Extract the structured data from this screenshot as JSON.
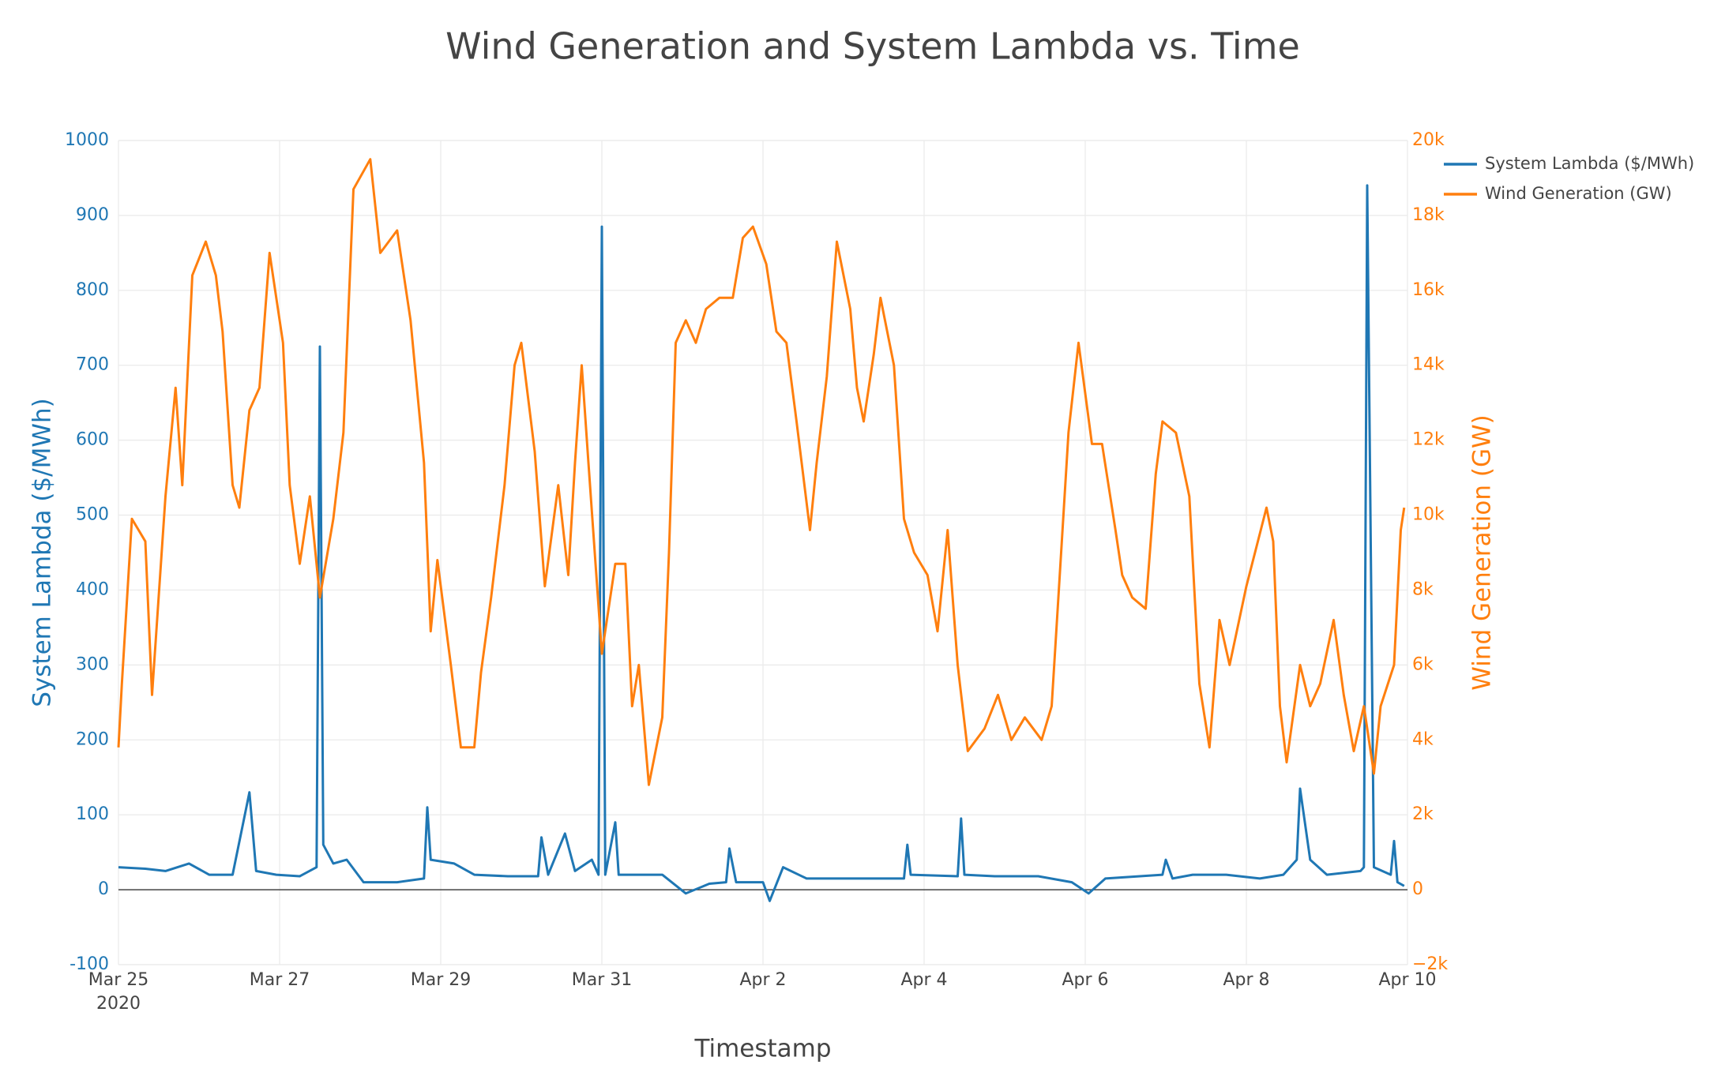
{
  "chart_data": {
    "type": "line",
    "title": "Wind Generation and System Lambda vs. Time",
    "x_label": "Timestamp",
    "y_label": "System Lambda ($/MWh)",
    "y2_label": "Wind Generation (GW)",
    "xlim": [
      "2020-03-25T00:00",
      "2020-04-10T00:00"
    ],
    "xticks": [
      {
        "value": "2020-03-25T00:00",
        "label": "Mar 25"
      },
      {
        "value": "2020-03-27T00:00",
        "label": "Mar 27"
      },
      {
        "value": "2020-03-29T00:00",
        "label": "Mar 29"
      },
      {
        "value": "2020-03-31T00:00",
        "label": "Mar 31"
      },
      {
        "value": "2020-04-02T00:00",
        "label": "Apr 2"
      },
      {
        "value": "2020-04-04T00:00",
        "label": "Apr 4"
      },
      {
        "value": "2020-04-06T00:00",
        "label": "Apr 6"
      },
      {
        "value": "2020-04-08T00:00",
        "label": "Apr 8"
      },
      {
        "value": "2020-04-10T00:00",
        "label": "Apr 10"
      }
    ],
    "x_year": "2020",
    "ylim": [
      -100,
      1000
    ],
    "yticks": [
      -100,
      0,
      100,
      200,
      300,
      400,
      500,
      600,
      700,
      800,
      900,
      1000
    ],
    "y2lim": [
      -2000,
      20000
    ],
    "y2ticks": [
      {
        "value": -2000,
        "label": "−2k"
      },
      0,
      {
        "value": 2000,
        "label": "2k"
      },
      {
        "value": 4000,
        "label": "4k"
      },
      {
        "value": 6000,
        "label": "6k"
      },
      {
        "value": 8000,
        "label": "8k"
      },
      {
        "value": 10000,
        "label": "10k"
      },
      {
        "value": 12000,
        "label": "12k"
      },
      {
        "value": 14000,
        "label": "14k"
      },
      {
        "value": 16000,
        "label": "16k"
      },
      {
        "value": 18000,
        "label": "18k"
      },
      {
        "value": 20000,
        "label": "20k"
      }
    ],
    "grid": true,
    "legend": "top-right",
    "series": [
      {
        "name": "System Lambda ($/MWh)",
        "color": "#1f77b4",
        "x": [
          "2020-03-25T00:00",
          "2020-03-25T08:00",
          "2020-03-25T14:00",
          "2020-03-25T21:00",
          "2020-03-26T03:00",
          "2020-03-26T10:00",
          "2020-03-26T15:00",
          "2020-03-26T17:00",
          "2020-03-26T23:00",
          "2020-03-27T06:00",
          "2020-03-27T11:00",
          "2020-03-27T12:00",
          "2020-03-27T13:00",
          "2020-03-27T16:00",
          "2020-03-27T20:00",
          "2020-03-28T01:00",
          "2020-03-28T11:00",
          "2020-03-28T19:00",
          "2020-03-28T20:00",
          "2020-03-28T21:00",
          "2020-03-29T04:00",
          "2020-03-29T10:00",
          "2020-03-29T20:00",
          "2020-03-30T05:00",
          "2020-03-30T06:00",
          "2020-03-30T08:00",
          "2020-03-30T13:00",
          "2020-03-30T16:00",
          "2020-03-30T21:00",
          "2020-03-30T23:00",
          "2020-03-31T00:00",
          "2020-03-31T01:00",
          "2020-03-31T04:00",
          "2020-03-31T05:00",
          "2020-03-31T12:00",
          "2020-03-31T18:00",
          "2020-04-01T01:00",
          "2020-04-01T08:00",
          "2020-04-01T13:00",
          "2020-04-01T14:00",
          "2020-04-01T16:00",
          "2020-04-02T00:00",
          "2020-04-02T02:00",
          "2020-04-02T06:00",
          "2020-04-02T13:00",
          "2020-04-02T23:00",
          "2020-04-03T09:00",
          "2020-04-03T18:00",
          "2020-04-03T19:00",
          "2020-04-03T20:00",
          "2020-04-04T10:00",
          "2020-04-04T11:00",
          "2020-04-04T12:00",
          "2020-04-04T21:00",
          "2020-04-05T10:00",
          "2020-04-05T20:00",
          "2020-04-06T01:00",
          "2020-04-06T06:00",
          "2020-04-06T23:00",
          "2020-04-07T00:00",
          "2020-04-07T02:00",
          "2020-04-07T08:00",
          "2020-04-07T18:00",
          "2020-04-08T04:00",
          "2020-04-08T11:00",
          "2020-04-08T15:00",
          "2020-04-08T16:00",
          "2020-04-08T19:00",
          "2020-04-09T00:00",
          "2020-04-09T10:00",
          "2020-04-09T11:00",
          "2020-04-09T12:00",
          "2020-04-09T14:00",
          "2020-04-09T19:00",
          "2020-04-09T20:00",
          "2020-04-09T21:00",
          "2020-04-09T23:00"
        ],
        "values": [
          30,
          28,
          25,
          35,
          20,
          20,
          130,
          25,
          20,
          18,
          30,
          725,
          60,
          35,
          40,
          10,
          10,
          15,
          110,
          40,
          35,
          20,
          18,
          18,
          70,
          20,
          75,
          25,
          40,
          20,
          885,
          20,
          90,
          20,
          20,
          20,
          -5,
          8,
          10,
          55,
          10,
          10,
          -15,
          30,
          15,
          15,
          15,
          15,
          60,
          20,
          18,
          95,
          20,
          18,
          18,
          10,
          -5,
          15,
          20,
          40,
          15,
          20,
          20,
          15,
          20,
          40,
          135,
          40,
          20,
          25,
          30,
          940,
          30,
          20,
          65,
          10,
          5
        ]
      },
      {
        "name": "Wind Generation (GW)",
        "color": "#ff7f0e",
        "axis": "y2",
        "x": [
          "2020-03-25T00:00",
          "2020-03-25T01:00",
          "2020-03-25T04:00",
          "2020-03-25T06:00",
          "2020-03-25T08:00",
          "2020-03-25T10:00",
          "2020-03-25T14:00",
          "2020-03-25T17:00",
          "2020-03-25T19:00",
          "2020-03-25T22:00",
          "2020-03-26T02:00",
          "2020-03-26T05:00",
          "2020-03-26T07:00",
          "2020-03-26T10:00",
          "2020-03-26T12:00",
          "2020-03-26T15:00",
          "2020-03-26T18:00",
          "2020-03-26T21:00",
          "2020-03-27T01:00",
          "2020-03-27T03:00",
          "2020-03-27T06:00",
          "2020-03-27T09:00",
          "2020-03-27T12:00",
          "2020-03-27T16:00",
          "2020-03-27T19:00",
          "2020-03-27T22:00",
          "2020-03-28T03:00",
          "2020-03-28T06:00",
          "2020-03-28T11:00",
          "2020-03-28T15:00",
          "2020-03-28T19:00",
          "2020-03-28T21:00",
          "2020-03-28T23:00",
          "2020-03-29T03:00",
          "2020-03-29T06:00",
          "2020-03-29T10:00",
          "2020-03-29T12:00",
          "2020-03-29T15:00",
          "2020-03-29T19:00",
          "2020-03-29T22:00",
          "2020-03-30T00:00",
          "2020-03-30T04:00",
          "2020-03-30T07:00",
          "2020-03-30T11:00",
          "2020-03-30T14:00",
          "2020-03-30T16:00",
          "2020-03-30T18:00",
          "2020-03-30T20:00",
          "2020-03-31T00:00",
          "2020-03-31T04:00",
          "2020-03-31T07:00",
          "2020-03-31T09:00",
          "2020-03-31T11:00",
          "2020-03-31T14:00",
          "2020-03-31T18:00",
          "2020-03-31T20:00",
          "2020-03-31T22:00",
          "2020-04-01T01:00",
          "2020-04-01T04:00",
          "2020-04-01T07:00",
          "2020-04-01T11:00",
          "2020-04-01T15:00",
          "2020-04-01T18:00",
          "2020-04-01T21:00",
          "2020-04-02T01:00",
          "2020-04-02T04:00",
          "2020-04-02T07:00",
          "2020-04-02T10:00",
          "2020-04-02T14:00",
          "2020-04-02T16:00",
          "2020-04-02T19:00",
          "2020-04-02T22:00",
          "2020-04-03T02:00",
          "2020-04-03T04:00",
          "2020-04-03T06:00",
          "2020-04-03T09:00",
          "2020-04-03T11:00",
          "2020-04-03T15:00",
          "2020-04-03T18:00",
          "2020-04-03T21:00",
          "2020-04-04T01:00",
          "2020-04-04T04:00",
          "2020-04-04T07:00",
          "2020-04-04T10:00",
          "2020-04-04T13:00",
          "2020-04-04T18:00",
          "2020-04-04T22:00",
          "2020-04-05T02:00",
          "2020-04-05T06:00",
          "2020-04-05T11:00",
          "2020-04-05T14:00",
          "2020-04-05T16:00",
          "2020-04-05T19:00",
          "2020-04-05T22:00",
          "2020-04-06T02:00",
          "2020-04-06T05:00",
          "2020-04-06T09:00",
          "2020-04-06T11:00",
          "2020-04-06T14:00",
          "2020-04-06T18:00",
          "2020-04-06T21:00",
          "2020-04-06T23:00",
          "2020-04-07T03:00",
          "2020-04-07T07:00",
          "2020-04-07T10:00",
          "2020-04-07T13:00",
          "2020-04-07T16:00",
          "2020-04-07T19:00",
          "2020-04-08T00:00",
          "2020-04-08T06:00",
          "2020-04-08T08:00",
          "2020-04-08T10:00",
          "2020-04-08T12:00",
          "2020-04-08T16:00",
          "2020-04-08T19:00",
          "2020-04-08T22:00",
          "2020-04-09T02:00",
          "2020-04-09T05:00",
          "2020-04-09T08:00",
          "2020-04-09T11:00",
          "2020-04-09T14:00",
          "2020-04-09T16:00",
          "2020-04-09T20:00",
          "2020-04-09T22:00",
          "2020-04-09T23:00"
        ],
        "values": [
          3800,
          5500,
          9900,
          9600,
          9300,
          5200,
          10500,
          13400,
          10800,
          16400,
          17300,
          16400,
          14900,
          10800,
          10200,
          12800,
          13400,
          17000,
          14600,
          10800,
          8700,
          10500,
          7800,
          9900,
          12200,
          18700,
          19500,
          17000,
          17600,
          15200,
          11400,
          6900,
          8800,
          6000,
          3800,
          3800,
          5800,
          7800,
          10800,
          14000,
          14600,
          11700,
          8100,
          10800,
          8400,
          11400,
          14000,
          11400,
          6300,
          8700,
          8700,
          4900,
          6000,
          2800,
          4600,
          9000,
          14600,
          15200,
          14600,
          15500,
          15800,
          15800,
          17400,
          17700,
          16700,
          14900,
          14600,
          12500,
          9600,
          11400,
          13700,
          17300,
          15500,
          13400,
          12500,
          14300,
          15800,
          14000,
          9900,
          9000,
          8400,
          6900,
          9600,
          6000,
          3700,
          4300,
          5200,
          4000,
          4600,
          4000,
          4900,
          7800,
          12200,
          14600,
          11900,
          11900,
          9600,
          8400,
          7800,
          7500,
          11100,
          12500,
          12200,
          10500,
          5500,
          3800,
          7200,
          6000,
          8100,
          10200,
          9300,
          4900,
          3400,
          6000,
          4900,
          5500,
          7200,
          5200,
          3700,
          4900,
          3100,
          4900,
          6000,
          9600,
          10200
        ]
      }
    ]
  }
}
